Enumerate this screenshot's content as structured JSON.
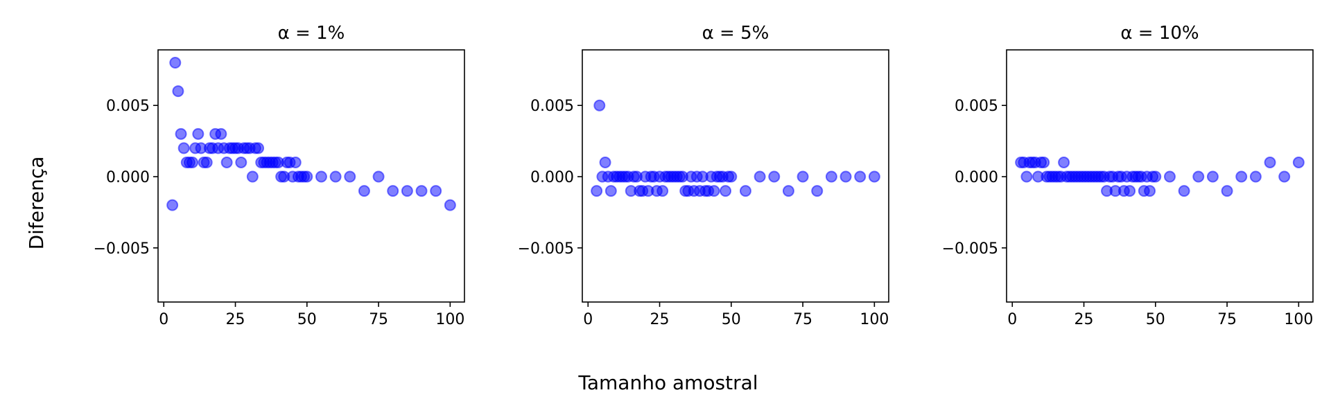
{
  "figure": {
    "ylabel": "Diferença",
    "xlabel": "Tamanho amostral"
  },
  "style": {
    "marker_color": "#0000ff",
    "marker_alpha": 0.5
  },
  "chart_data": [
    {
      "type": "scatter",
      "title": "α = 1%",
      "xlim": [
        -2,
        105
      ],
      "ylim": [
        -0.0088,
        0.0089
      ],
      "x_ticks": [
        0,
        25,
        50,
        75,
        100
      ],
      "y_ticks": [
        0.005,
        0.0,
        -0.005
      ],
      "x_tick_labels": [
        "0",
        "25",
        "50",
        "75",
        "100"
      ],
      "y_tick_labels": [
        "0.005",
        "0.000",
        "−0.005"
      ],
      "show_y_tick_labels": true,
      "x": [
        3,
        4,
        5,
        6,
        7,
        8,
        9,
        10,
        11,
        12,
        13,
        14,
        15,
        16,
        17,
        18,
        19,
        20,
        21,
        22,
        23,
        24,
        25,
        26,
        27,
        28,
        29,
        30,
        31,
        32,
        33,
        34,
        35,
        36,
        37,
        38,
        39,
        40,
        41,
        42,
        43,
        44,
        45,
        46,
        47,
        48,
        49,
        50,
        55,
        60,
        65,
        70,
        75,
        80,
        85,
        90,
        95,
        100
      ],
      "y": [
        -0.002,
        0.008,
        0.006,
        0.003,
        0.002,
        0.001,
        0.001,
        0.001,
        0.002,
        0.003,
        0.002,
        0.001,
        0.001,
        0.002,
        0.002,
        0.003,
        0.002,
        0.003,
        0.002,
        0.001,
        0.002,
        0.002,
        0.002,
        0.002,
        0.001,
        0.002,
        0.002,
        0.002,
        0.0,
        0.002,
        0.002,
        0.001,
        0.001,
        0.001,
        0.001,
        0.001,
        0.001,
        0.001,
        0.0,
        0.0,
        0.001,
        0.001,
        0.0,
        0.001,
        0.0,
        0.0,
        0.0,
        0.0,
        0.0,
        0.0,
        0.0,
        -0.001,
        0.0,
        -0.001,
        -0.001,
        -0.001,
        -0.001,
        -0.002
      ]
    },
    {
      "type": "scatter",
      "title": "α = 5%",
      "xlim": [
        -2,
        105
      ],
      "ylim": [
        -0.0088,
        0.0089
      ],
      "x_ticks": [
        0,
        25,
        50,
        75,
        100
      ],
      "y_ticks": [
        0.005,
        0.0,
        -0.005
      ],
      "x_tick_labels": [
        "0",
        "25",
        "50",
        "75",
        "100"
      ],
      "y_tick_labels": [
        "0.005",
        "0.000",
        "−0.005"
      ],
      "show_y_tick_labels": true,
      "x": [
        3,
        4,
        5,
        6,
        7,
        8,
        9,
        10,
        11,
        12,
        13,
        14,
        15,
        16,
        17,
        18,
        19,
        20,
        21,
        22,
        23,
        24,
        25,
        26,
        27,
        28,
        29,
        30,
        31,
        32,
        33,
        34,
        35,
        36,
        37,
        38,
        39,
        40,
        41,
        42,
        43,
        44,
        45,
        46,
        47,
        48,
        49,
        50,
        55,
        60,
        65,
        70,
        75,
        80,
        85,
        90,
        95,
        100
      ],
      "y": [
        -0.001,
        0.005,
        0.0,
        0.001,
        0.0,
        -0.001,
        0.0,
        0.0,
        0.0,
        0.0,
        0.0,
        0.0,
        -0.001,
        0.0,
        0.0,
        -0.001,
        -0.001,
        0.0,
        -0.001,
        0.0,
        0.0,
        -0.001,
        0.0,
        -0.001,
        0.0,
        0.0,
        0.0,
        0.0,
        0.0,
        0.0,
        0.0,
        -0.001,
        -0.001,
        0.0,
        -0.001,
        0.0,
        -0.001,
        0.0,
        -0.001,
        -0.001,
        0.0,
        -0.001,
        0.0,
        0.0,
        0.0,
        -0.001,
        0.0,
        0.0,
        -0.001,
        0.0,
        0.0,
        -0.001,
        0.0,
        -0.001,
        0.0,
        0.0,
        0.0,
        0.0
      ]
    },
    {
      "type": "scatter",
      "title": "α = 10%",
      "xlim": [
        -2,
        105
      ],
      "ylim": [
        -0.0088,
        0.0089
      ],
      "x_ticks": [
        0,
        25,
        50,
        75,
        100
      ],
      "y_ticks": [
        0.005,
        0.0,
        -0.005
      ],
      "x_tick_labels": [
        "0",
        "25",
        "50",
        "75",
        "100"
      ],
      "y_tick_labels": [
        "0.005",
        "0.000",
        "−0.005"
      ],
      "show_y_tick_labels": true,
      "x": [
        3,
        4,
        5,
        6,
        7,
        8,
        9,
        10,
        11,
        12,
        13,
        14,
        15,
        16,
        17,
        18,
        19,
        20,
        21,
        22,
        23,
        24,
        25,
        26,
        27,
        28,
        29,
        30,
        31,
        32,
        33,
        34,
        35,
        36,
        37,
        38,
        39,
        40,
        41,
        42,
        43,
        44,
        45,
        46,
        47,
        48,
        49,
        50,
        55,
        60,
        65,
        70,
        75,
        80,
        85,
        90,
        95,
        100
      ],
      "y": [
        0.001,
        0.001,
        0.0,
        0.001,
        0.001,
        0.001,
        0.0,
        0.001,
        0.001,
        0.0,
        0.0,
        0.0,
        0.0,
        0.0,
        0.0,
        0.001,
        0.0,
        0.0,
        0.0,
        0.0,
        0.0,
        0.0,
        0.0,
        0.0,
        0.0,
        0.0,
        0.0,
        0.0,
        0.0,
        0.0,
        -0.001,
        0.0,
        0.0,
        -0.001,
        0.0,
        0.0,
        -0.001,
        0.0,
        -0.001,
        0.0,
        0.0,
        0.0,
        0.0,
        -0.001,
        0.0,
        -0.001,
        0.0,
        0.0,
        0.0,
        -0.001,
        0.0,
        0.0,
        -0.001,
        0.0,
        0.0,
        0.001,
        0.0,
        0.001
      ]
    }
  ]
}
